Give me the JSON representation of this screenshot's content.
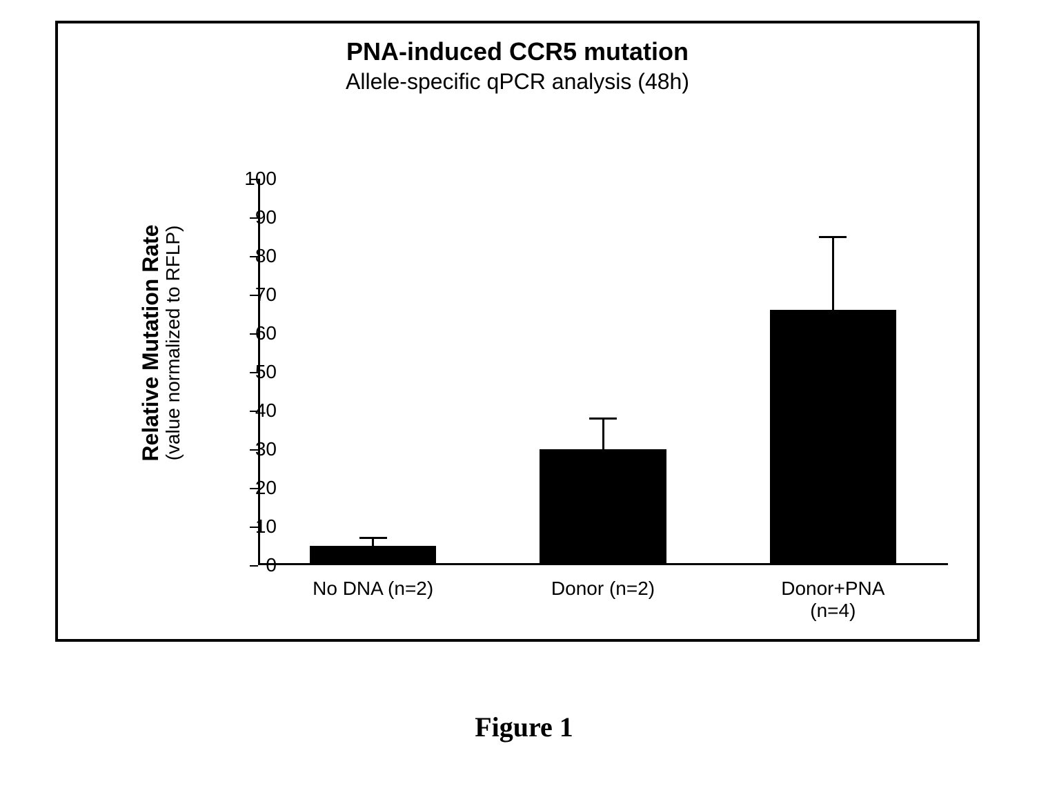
{
  "chart": {
    "type": "bar",
    "title": "PNA-induced CCR5 mutation",
    "subtitle": "Allele-specific qPCR analysis (48h)",
    "title_fontsize": 36,
    "subtitle_fontsize": 32,
    "background_color": "#ffffff",
    "border_color": "#000000",
    "border_width": 4,
    "y_axis": {
      "label_main": "Relative Mutation Rate",
      "label_sub": "(value normalized to RFLP)",
      "label_main_fontsize": 32,
      "label_sub_fontsize": 28,
      "ylim": [
        0,
        100
      ],
      "ytick_step": 10,
      "ticks": [
        0,
        10,
        20,
        30,
        40,
        50,
        60,
        70,
        80,
        90,
        100
      ],
      "tick_fontsize": 28
    },
    "x_axis": {
      "categories": [
        "No DNA (n=2)",
        "Donor (n=2)",
        "Donor+PNA (n=4)"
      ],
      "label_fontsize": 28
    },
    "data": {
      "values": [
        5,
        30,
        66
      ],
      "errors": [
        2,
        8,
        19
      ],
      "bar_color": "#000000",
      "error_bar_color": "#000000",
      "bar_width_fraction": 0.55
    }
  },
  "figure_caption": "Figure 1",
  "figure_caption_fontsize": 40
}
